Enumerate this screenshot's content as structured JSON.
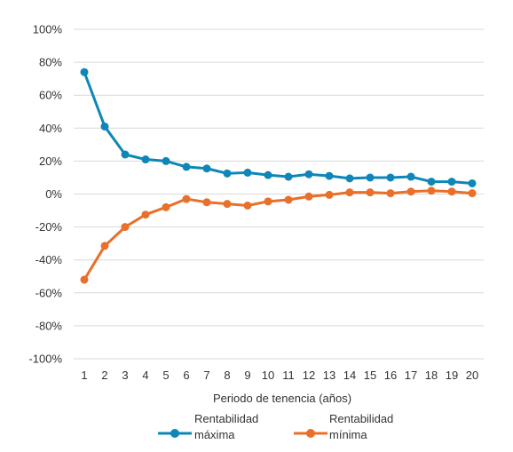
{
  "chart_data": {
    "type": "line",
    "title": "",
    "xlabel": "Periodo de tenencia (años)",
    "ylabel": "",
    "x": [
      1,
      2,
      3,
      4,
      5,
      6,
      7,
      8,
      9,
      10,
      11,
      12,
      13,
      14,
      15,
      16,
      17,
      18,
      19,
      20
    ],
    "ylim": [
      -100,
      100
    ],
    "yticks": [
      -100,
      -80,
      -60,
      -40,
      -20,
      0,
      20,
      40,
      60,
      80,
      100
    ],
    "ytick_labels": [
      "-100%",
      "-80%",
      "-60%",
      "-40%",
      "-20%",
      "0%",
      "20%",
      "40%",
      "60%",
      "80%",
      "100%"
    ],
    "grid": "horizontal",
    "legend_position": "bottom",
    "series": [
      {
        "name_line1": "Rentabilidad",
        "name_line2": "máxima",
        "color": "#0e87b8",
        "values": [
          74,
          41,
          24,
          21,
          20,
          16.5,
          15.5,
          12.5,
          13,
          11.5,
          10.5,
          12,
          11,
          9.5,
          10,
          10,
          10.5,
          7.5,
          7.5,
          6.5
        ]
      },
      {
        "name_line1": "Rentabilidad",
        "name_line2": "mínima",
        "color": "#e8702a",
        "values": [
          -52,
          -31.5,
          -20,
          -12.5,
          -8,
          -3,
          -5,
          -6,
          -7,
          -4.5,
          -3.5,
          -1.5,
          -0.5,
          1,
          1,
          0.5,
          1.5,
          2,
          1.5,
          0.5
        ]
      }
    ]
  }
}
